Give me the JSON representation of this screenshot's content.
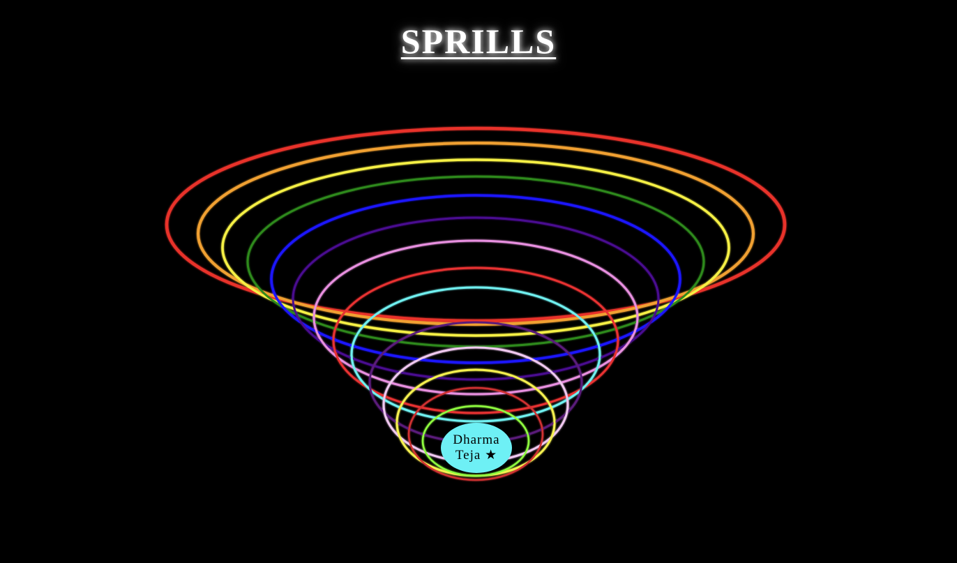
{
  "title": "SPRILLS",
  "badge": {
    "line1": "Dharma",
    "line2": "Teja ★",
    "color": "#6ef0f5"
  },
  "rings": [
    {
      "color": "#e8322a"
    },
    {
      "color": "#f0a030"
    },
    {
      "color": "#f5f045"
    },
    {
      "color": "#2f8a1e"
    },
    {
      "color": "#1a14ff"
    },
    {
      "color": "#4a1090"
    },
    {
      "color": "#e890e0"
    },
    {
      "color": "#e83030"
    },
    {
      "color": "#70f0f0"
    },
    {
      "color": "#5a1a7a"
    },
    {
      "color": "#f0c8f0"
    },
    {
      "color": "#f5f050"
    },
    {
      "color": "#d03030"
    },
    {
      "color": "#90ff40"
    }
  ]
}
